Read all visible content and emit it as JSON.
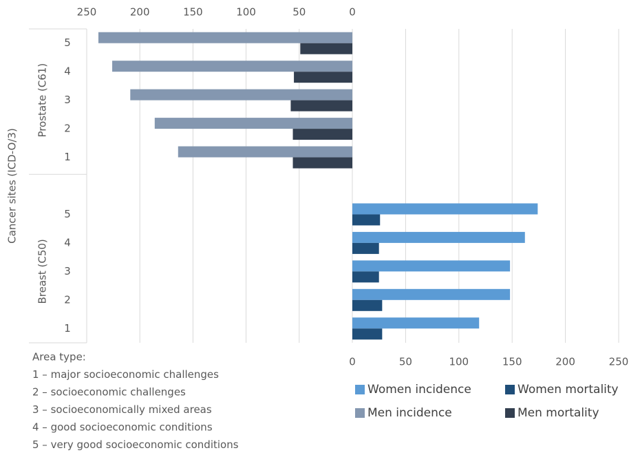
{
  "chart_data": {
    "type": "bar",
    "orientation": "horizontal",
    "y_label": "Cancer sites (ICD-O/3)",
    "groups": [
      {
        "label": "Prostate (C61)",
        "categories": [
          "5",
          "4",
          "3",
          "2",
          "1"
        ]
      },
      {
        "label": "Breast (C50)",
        "categories": [
          "5",
          "4",
          "3",
          "2",
          "1"
        ]
      }
    ],
    "series": [
      {
        "name": "Women incidence",
        "color": "#5b9bd5",
        "values": [
          null,
          null,
          null,
          null,
          null,
          174,
          162,
          148,
          148,
          119
        ]
      },
      {
        "name": "Women mortality",
        "color": "#1f4e79",
        "values": [
          null,
          null,
          null,
          null,
          null,
          26,
          25,
          25,
          28,
          28
        ]
      },
      {
        "name": "Men incidence",
        "color": "#8497b0",
        "axis": "x2",
        "values": [
          239,
          226,
          209,
          186,
          164,
          null,
          null,
          null,
          null,
          null
        ]
      },
      {
        "name": "Men mortality",
        "color": "#333f50",
        "axis": "x2",
        "values": [
          49,
          55,
          58,
          56,
          56,
          null,
          null,
          null,
          null,
          null
        ]
      }
    ],
    "xlim": [
      0,
      250
    ],
    "xticks": [
      0,
      50,
      100,
      150,
      200,
      250
    ],
    "x2lim": [
      250,
      0
    ],
    "x2ticks": [
      250,
      200,
      150,
      100,
      50,
      0
    ],
    "grid": true,
    "notes": [
      "Area type:",
      "1 – major socioeconomic challenges",
      "2 – socioeconomic challenges",
      "3 – socioeconomically mixed areas",
      "4 – good socioeconomic conditions",
      "5 – very good socioeconomic conditions"
    ]
  }
}
